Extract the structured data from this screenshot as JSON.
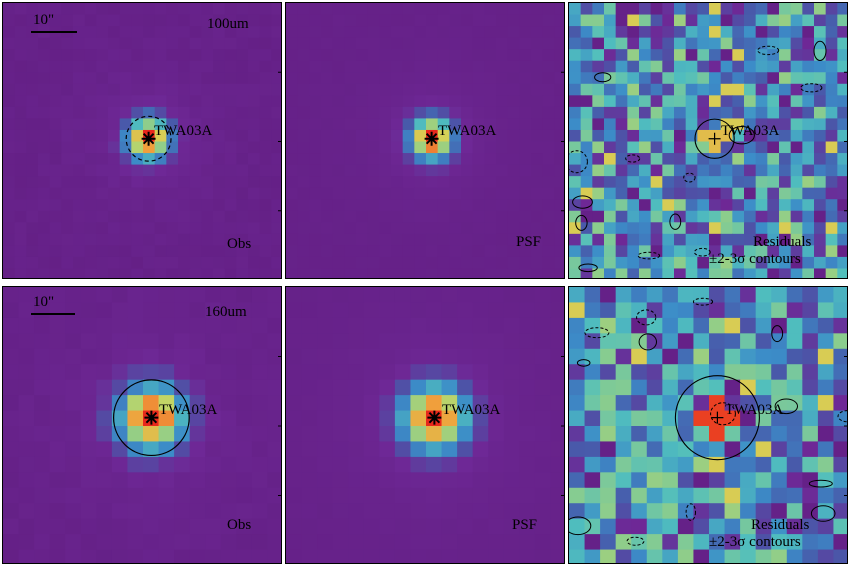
{
  "target": "TWA03A",
  "scale_label": "10\"",
  "rows": [
    {
      "band": "100um",
      "panels": [
        {
          "kind": "obs",
          "corner_label": "Obs",
          "grid": 24,
          "ring": "dashed"
        },
        {
          "kind": "psf",
          "corner_label": "PSF",
          "grid": 24
        },
        {
          "kind": "res",
          "corner_label": "Residuals",
          "corner_label2": "±2-3σ contours",
          "grid": 24
        }
      ]
    },
    {
      "band": "160um",
      "panels": [
        {
          "kind": "obs",
          "corner_label": "Obs",
          "grid": 18,
          "ring": "solid"
        },
        {
          "kind": "psf",
          "corner_label": "PSF",
          "grid": 18
        },
        {
          "kind": "res",
          "corner_label": "Residuals",
          "corner_label2": "±2-3σ contours",
          "grid": 18
        }
      ]
    }
  ],
  "colors": {
    "background": "#6a1f8a",
    "peak": "#e8281c",
    "contour": "#000000"
  }
}
